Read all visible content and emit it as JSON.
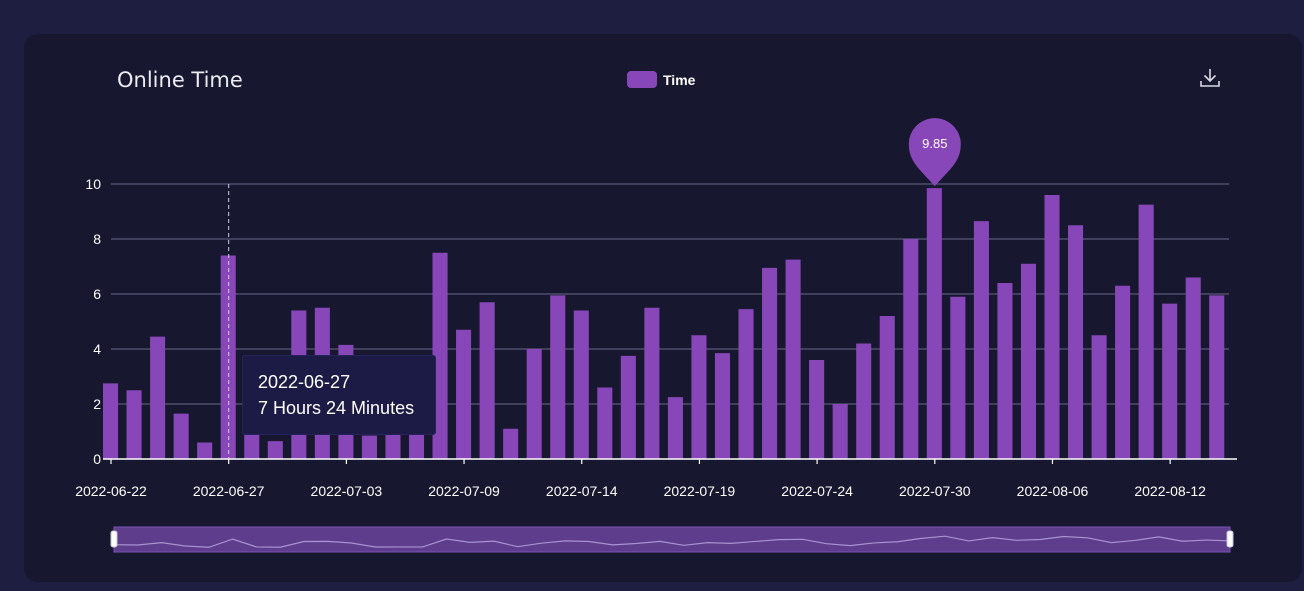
{
  "card": {
    "title": "Online Time",
    "download_icon": "download-icon"
  },
  "tooltip": {
    "date": "2022-06-27",
    "value": "7 Hours 24 Minutes"
  },
  "colors": {
    "bar": "#8847b8",
    "grid": "#6a6a88",
    "axis_text": "#ffffff",
    "background": "#171730",
    "page": "#1d1e40"
  },
  "chart_data": {
    "type": "bar",
    "title": "Online Time",
    "xlabel": "",
    "ylabel": "",
    "ylim": [
      0,
      10
    ],
    "yticks": [
      0,
      2,
      4,
      6,
      8,
      10
    ],
    "grid": true,
    "legend": "top-center",
    "xtick_labels": [
      "2022-06-22",
      "2022-06-27",
      "2022-07-03",
      "2022-07-09",
      "2022-07-14",
      "2022-07-19",
      "2022-07-24",
      "2022-07-30",
      "2022-08-06",
      "2022-08-12"
    ],
    "xtick_indices": [
      0,
      5,
      10,
      15,
      20,
      25,
      30,
      35,
      40,
      45
    ],
    "series": [
      {
        "name": "Time",
        "values": [
          2.75,
          2.5,
          4.45,
          1.65,
          0.6,
          7.4,
          0.9,
          0.65,
          5.4,
          5.5,
          4.15,
          0.85,
          0.9,
          0.9,
          7.5,
          4.7,
          5.7,
          1.1,
          4.0,
          5.95,
          5.4,
          2.6,
          3.75,
          5.5,
          2.25,
          4.5,
          3.85,
          5.45,
          6.95,
          7.25,
          3.6,
          2.0,
          4.2,
          5.2,
          8.0,
          9.85,
          5.9,
          8.65,
          6.4,
          7.1,
          9.6,
          8.5,
          4.5,
          6.3,
          9.25,
          5.65,
          6.6,
          5.95
        ]
      }
    ],
    "annotations": [
      {
        "type": "max-marker",
        "index": 35,
        "label": "9.85"
      }
    ],
    "tooltip_index": 5
  }
}
